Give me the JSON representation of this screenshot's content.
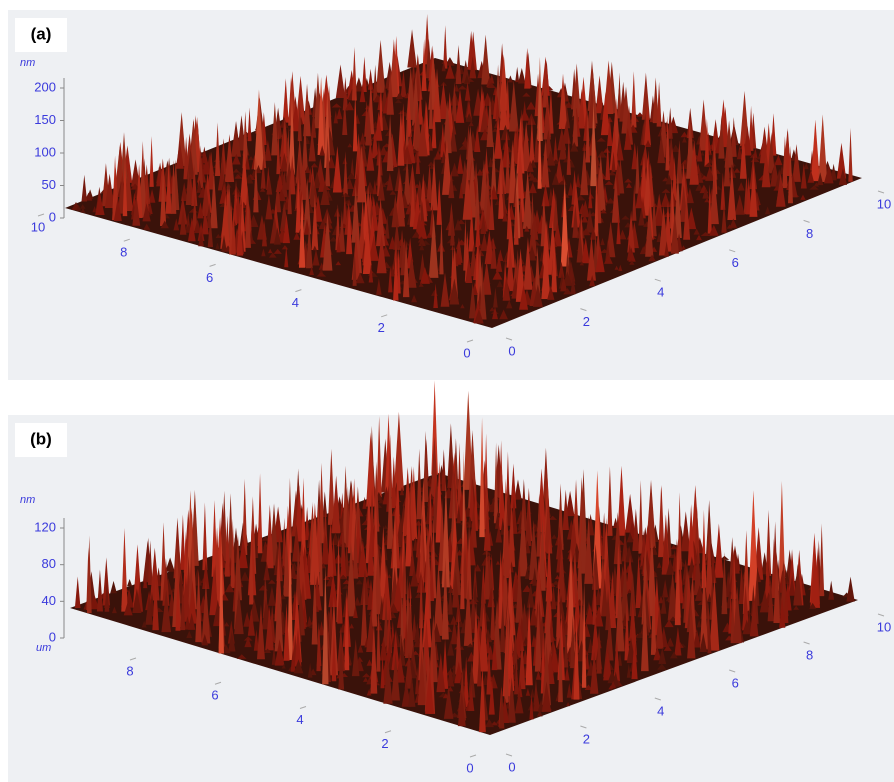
{
  "panels": [
    {
      "label": "(a)",
      "z_unit": "nm",
      "z_ticks": [
        0,
        50,
        100,
        150,
        200
      ],
      "left_ticks": [
        10,
        8,
        6,
        4,
        2,
        0
      ],
      "right_ticks": [
        0,
        2,
        4,
        6,
        8,
        10
      ]
    },
    {
      "label": "(b)",
      "z_unit": "nm",
      "lateral_unit": "um",
      "z_ticks": [
        0,
        40,
        80,
        120
      ],
      "left_ticks": [
        8,
        6,
        4,
        2,
        0
      ],
      "right_ticks": [
        0,
        2,
        4,
        6,
        8,
        10
      ]
    }
  ]
}
